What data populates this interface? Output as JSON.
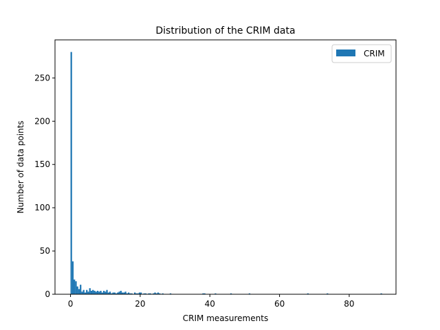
{
  "chart_data": {
    "type": "bar",
    "title": "Distribution of the CRIM data",
    "xlabel": "CRIM measurements",
    "ylabel": "Number of data points",
    "xlim": [
      -4.45,
      93.43
    ],
    "ylim": [
      0,
      294
    ],
    "xticks": [
      0,
      20,
      40,
      60,
      80
    ],
    "yticks": [
      0,
      50,
      100,
      150,
      200,
      250
    ],
    "grid": false,
    "legend_position": "top-right",
    "series": [
      {
        "name": "CRIM",
        "color": "#1f77b4",
        "bin_width": 0.445,
        "bins": [
          [
            0.0,
            280
          ],
          [
            0.445,
            38
          ],
          [
            0.89,
            17
          ],
          [
            1.34,
            15
          ],
          [
            1.78,
            9
          ],
          [
            2.23,
            6
          ],
          [
            2.67,
            11
          ],
          [
            3.12,
            3
          ],
          [
            3.56,
            5
          ],
          [
            4.01,
            2
          ],
          [
            4.45,
            5
          ],
          [
            4.9,
            3
          ],
          [
            5.34,
            7
          ],
          [
            5.79,
            4
          ],
          [
            6.23,
            5
          ],
          [
            6.68,
            4
          ],
          [
            7.12,
            3
          ],
          [
            7.57,
            4
          ],
          [
            8.01,
            3
          ],
          [
            8.46,
            4
          ],
          [
            8.9,
            2
          ],
          [
            9.35,
            4
          ],
          [
            9.79,
            3
          ],
          [
            10.24,
            5
          ],
          [
            10.68,
            2
          ],
          [
            11.13,
            3
          ],
          [
            11.57,
            1
          ],
          [
            12.02,
            2
          ],
          [
            12.46,
            2
          ],
          [
            12.91,
            1
          ],
          [
            13.35,
            2
          ],
          [
            13.8,
            3
          ],
          [
            14.24,
            4
          ],
          [
            14.69,
            2
          ],
          [
            15.13,
            2
          ],
          [
            15.58,
            3
          ],
          [
            16.02,
            1
          ],
          [
            16.47,
            2
          ],
          [
            16.91,
            1
          ],
          [
            17.36,
            1
          ],
          [
            18.25,
            2
          ],
          [
            18.7,
            1
          ],
          [
            19.14,
            1
          ],
          [
            19.59,
            2
          ],
          [
            20.03,
            2
          ],
          [
            20.92,
            1
          ],
          [
            21.37,
            1
          ],
          [
            22.26,
            1
          ],
          [
            22.7,
            1
          ],
          [
            23.59,
            1
          ],
          [
            24.04,
            2
          ],
          [
            24.48,
            1
          ],
          [
            24.93,
            2
          ],
          [
            25.37,
            1
          ],
          [
            26.26,
            1
          ],
          [
            28.49,
            1
          ],
          [
            37.84,
            1
          ],
          [
            38.28,
            1
          ],
          [
            41.39,
            1
          ],
          [
            45.85,
            1
          ],
          [
            51.16,
            1
          ],
          [
            67.92,
            1
          ],
          [
            73.53,
            1
          ],
          [
            88.98,
            1
          ]
        ]
      }
    ]
  }
}
